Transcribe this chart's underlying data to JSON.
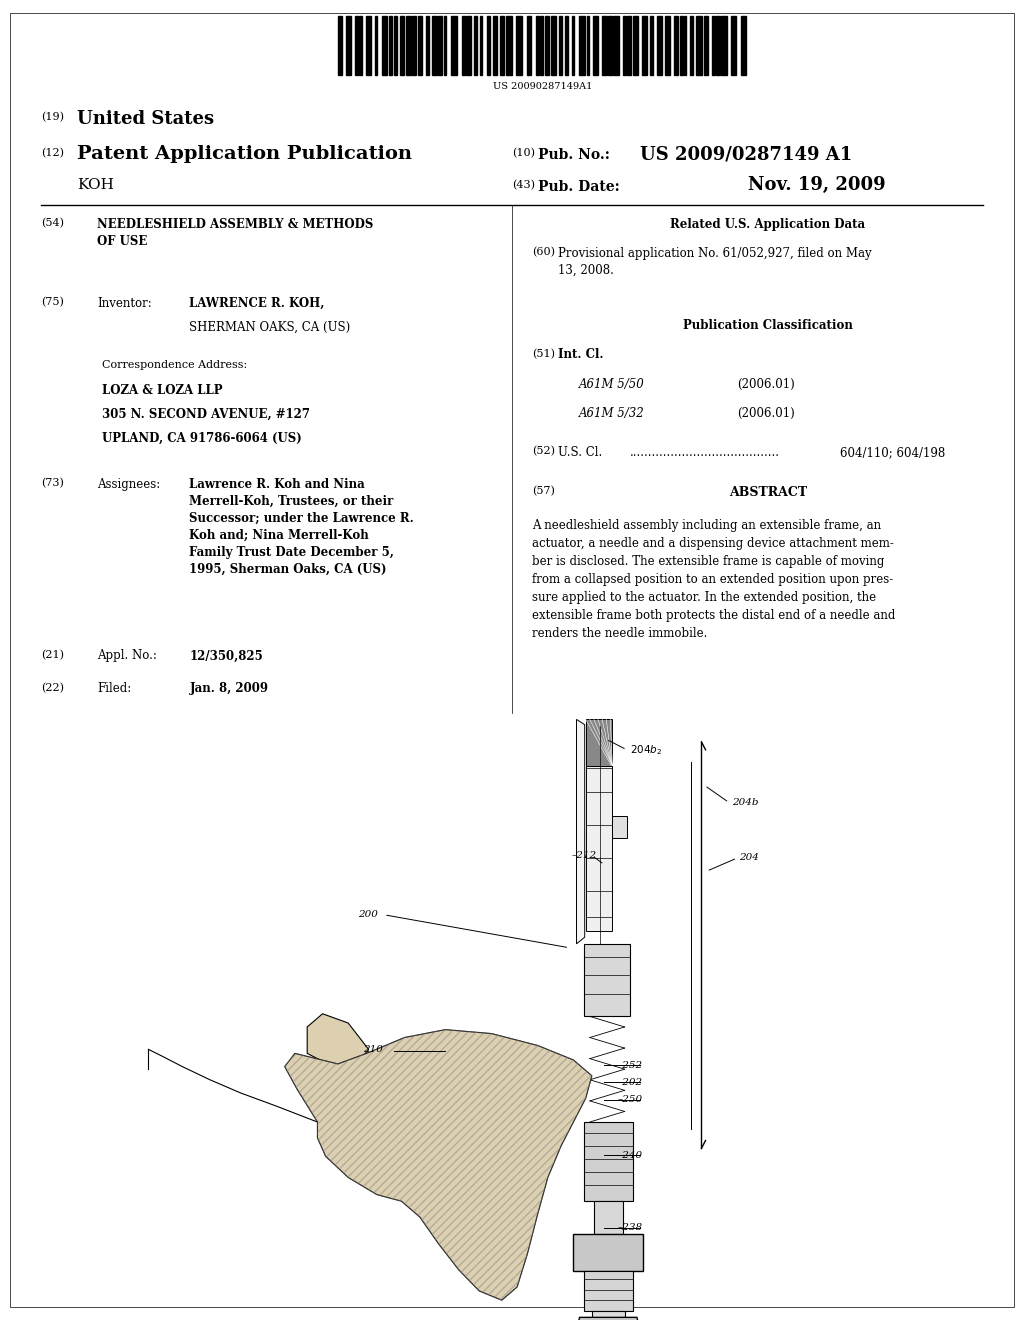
{
  "background_color": "#ffffff",
  "barcode_text": "US 20090287149A1",
  "header": {
    "country_num": "(19)",
    "country": "United States",
    "pub_type_num": "(12)",
    "pub_type": "Patent Application Publication",
    "applicant": "KOH",
    "pub_no_num": "(10)",
    "pub_no_label": "Pub. No.:",
    "pub_no_value": "US 2009/0287149 A1",
    "pub_date_num": "(43)",
    "pub_date_label": "Pub. Date:",
    "pub_date_value": "Nov. 19, 2009"
  },
  "left_col": {
    "title_num": "(54)",
    "title": "NEEDLESHIELD ASSEMBLY & METHODS\nOF USE",
    "inventor_num": "(75)",
    "inventor_label": "Inventor:",
    "inventor_name": "LAWRENCE R. KOH,",
    "inventor_city": "SHERMAN OAKS, CA (US)",
    "corr_label": "Correspondence Address:",
    "corr_firm": "LOZA & LOZA LLP",
    "corr_addr1": "305 N. SECOND AVENUE, #127",
    "corr_addr2": "UPLAND, CA 91786-6064 (US)",
    "assignee_num": "(73)",
    "assignee_label": "Assignees:",
    "assignee_text": "Lawrence R. Koh and Nina\nMerrell-Koh, Trustees, or their\nSuccessor; under the Lawrence R.\nKoh and; Nina Merrell-Koh\nFamily Trust Date December 5,\n1995, Sherman Oaks, CA (US)",
    "appl_num": "(21)",
    "appl_label": "Appl. No.:",
    "appl_value": "12/350,825",
    "filed_num": "(22)",
    "filed_label": "Filed:",
    "filed_value": "Jan. 8, 2009"
  },
  "right_col": {
    "related_title": "Related U.S. Application Data",
    "related_num": "(60)",
    "related_text": "Provisional application No. 61/052,927, filed on May\n13, 2008.",
    "pub_class_title": "Publication Classification",
    "int_cl_num": "(51)",
    "int_cl_label": "Int. Cl.",
    "int_cl_entries": [
      {
        "class": "A61M 5/50",
        "date": "(2006.01)"
      },
      {
        "class": "A61M 5/32",
        "date": "(2006.01)"
      }
    ],
    "us_cl_num": "(52)",
    "us_cl_label": "U.S. Cl.",
    "us_cl_dots": "........................................",
    "us_cl_value": "604/110; 604/198",
    "abstract_num": "(57)",
    "abstract_title": "ABSTRACT",
    "abstract_text": "A needleshield assembly including an extensible frame, an\nactuator, a needle and a dispensing device attachment mem-\nber is disclosed. The extensible frame is capable of moving\nfrom a collapsed position to an extended position upon pres-\nsure applied to the actuator. In the extended position, the\nextensible frame both protects the distal end of a needle and\nrenders the needle immobile."
  }
}
